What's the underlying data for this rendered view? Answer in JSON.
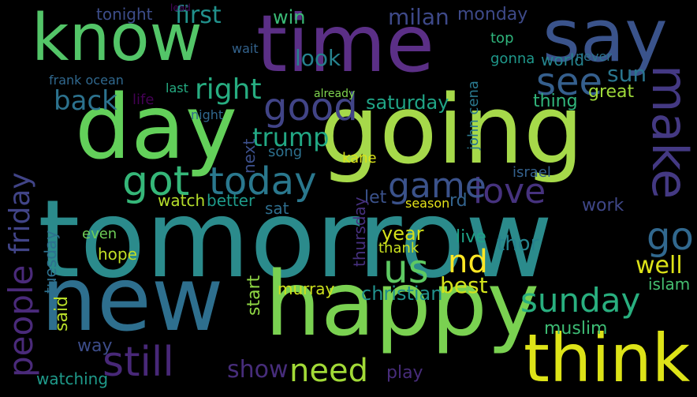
{
  "word_cloud": {
    "background": "#000000",
    "palette": "viridis",
    "words": [
      {
        "text": "tomorrow",
        "color": "#2b8b8c"
      },
      {
        "text": "going",
        "color": "#a6d94a"
      },
      {
        "text": "time",
        "color": "#5b2f86"
      },
      {
        "text": "know",
        "color": "#53c568"
      },
      {
        "text": "day",
        "color": "#63d05a"
      },
      {
        "text": "new",
        "color": "#2e6f8e"
      },
      {
        "text": "happy",
        "color": "#7ad151"
      },
      {
        "text": "say",
        "color": "#3a538b"
      },
      {
        "text": "think",
        "color": "#dde318"
      },
      {
        "text": "make",
        "color": "#443983"
      },
      {
        "text": "people",
        "color": "#4a2a7a"
      },
      {
        "text": "friday",
        "color": "#414487"
      },
      {
        "text": "got",
        "color": "#35b779"
      },
      {
        "text": "today",
        "color": "#2a788e"
      },
      {
        "text": "good",
        "color": "#414487"
      },
      {
        "text": "see",
        "color": "#355f8d"
      },
      {
        "text": "back",
        "color": "#2c728e"
      },
      {
        "text": "still",
        "color": "#482878"
      },
      {
        "text": "love",
        "color": "#46327e"
      },
      {
        "text": "game",
        "color": "#3b528b"
      },
      {
        "text": "sunday",
        "color": "#29af7f"
      },
      {
        "text": "need",
        "color": "#a2da37"
      },
      {
        "text": "us",
        "color": "#5ec962"
      },
      {
        "text": "nd",
        "color": "#fde725"
      },
      {
        "text": "go",
        "color": "#31688e"
      },
      {
        "text": "first",
        "color": "#21918c"
      },
      {
        "text": "right",
        "color": "#27ad81"
      },
      {
        "text": "trump",
        "color": "#22a884"
      },
      {
        "text": "show",
        "color": "#472d7b"
      },
      {
        "text": "look",
        "color": "#26828e"
      },
      {
        "text": "sun",
        "color": "#2a768e"
      },
      {
        "text": "monday",
        "color": "#3e4a89"
      },
      {
        "text": "milan",
        "color": "#3e4989"
      },
      {
        "text": "saturday",
        "color": "#20a486"
      },
      {
        "text": "great",
        "color": "#9fda3a"
      },
      {
        "text": "well",
        "color": "#dde318"
      },
      {
        "text": "christian",
        "color": "#21918c"
      },
      {
        "text": "tonight",
        "color": "#3d4d8a"
      },
      {
        "text": "watch",
        "color": "#b5de2b"
      },
      {
        "text": "better",
        "color": "#1e9b8a"
      },
      {
        "text": "year",
        "color": "#d5e21a"
      },
      {
        "text": "live",
        "color": "#1fa187"
      },
      {
        "text": "thor",
        "color": "#26828e"
      },
      {
        "text": "best",
        "color": "#d2e21b"
      },
      {
        "text": "said",
        "color": "#b8de29"
      },
      {
        "text": "thing",
        "color": "#31b57b"
      },
      {
        "text": "world",
        "color": "#25848e"
      },
      {
        "text": "work",
        "color": "#3f4788"
      },
      {
        "text": "play",
        "color": "#472c7a"
      },
      {
        "text": "muslim",
        "color": "#3dbc74"
      },
      {
        "text": "islam",
        "color": "#45bf70"
      },
      {
        "text": "watching",
        "color": "#1f9a8a"
      },
      {
        "text": "way",
        "color": "#3d4d8a"
      },
      {
        "text": "start",
        "color": "#8fd744"
      },
      {
        "text": "murray",
        "color": "#cde11d"
      },
      {
        "text": "hope",
        "color": "#c0df25"
      },
      {
        "text": "even",
        "color": "#6ece58"
      },
      {
        "text": "thank",
        "color": "#cae11f"
      },
      {
        "text": "let",
        "color": "#3b528b"
      },
      {
        "text": "rd",
        "color": "#33638d"
      },
      {
        "text": "gonna",
        "color": "#1f988b"
      },
      {
        "text": "top",
        "color": "#2fb47c"
      },
      {
        "text": "win",
        "color": "#3aba76"
      },
      {
        "text": "never",
        "color": "#2c738e"
      },
      {
        "text": "sat",
        "color": "#2e6e8e"
      },
      {
        "text": "next",
        "color": "#3c4f8a"
      },
      {
        "text": "thursday",
        "color": "#46307e"
      },
      {
        "text": "tuesday",
        "color": "#2d708e"
      },
      {
        "text": "song",
        "color": "#2d718e"
      },
      {
        "text": "watch",
        "color": "#b5de2b"
      },
      {
        "text": "life",
        "color": "#440154"
      },
      {
        "text": "last",
        "color": "#25ac82"
      },
      {
        "text": "night",
        "color": "#30678d"
      },
      {
        "text": "john cena",
        "color": "#2a788e"
      },
      {
        "text": "kane",
        "color": "#d8e219"
      },
      {
        "text": "israel",
        "color": "#34618d"
      },
      {
        "text": "season",
        "color": "#e5e419"
      },
      {
        "text": "frank ocean",
        "color": "#30688e"
      },
      {
        "text": "already",
        "color": "#7fd34e"
      },
      {
        "text": "wait",
        "color": "#33638d"
      },
      {
        "text": "lead",
        "color": "#46085c"
      }
    ]
  }
}
